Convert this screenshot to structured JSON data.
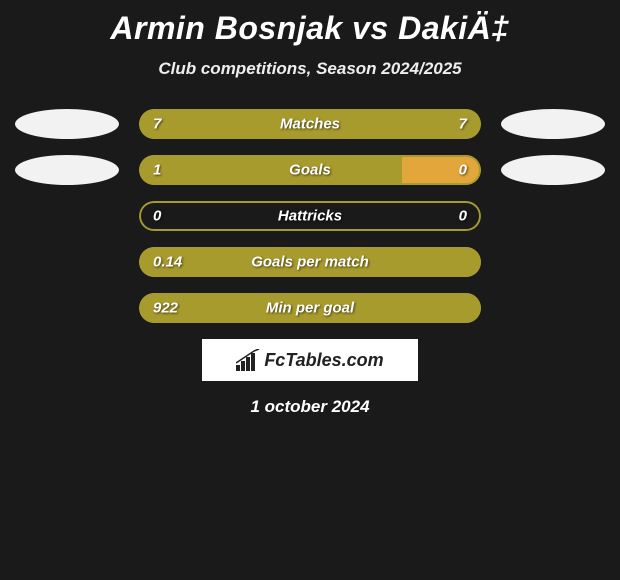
{
  "title": "Armin Bosnjak vs DakiÄ‡",
  "subtitle": "Club competitions, Season 2024/2025",
  "date": "1 october 2024",
  "brand": "FcTables.com",
  "colors": {
    "bar_fill": "#a89b2e",
    "bar_right_fill": "#e2a63a",
    "bar_border": "#a89b2e",
    "background": "#1a1a1a",
    "ellipse": "#f2f2f2",
    "brand_bg": "#ffffff"
  },
  "rows": [
    {
      "metric": "Matches",
      "left_value": "7",
      "right_value": "7",
      "left_pct": 50,
      "right_pct": 50,
      "left_fill": "#a89b2e",
      "right_fill": "#a89b2e",
      "show_left_ellipse": true,
      "show_right_ellipse": true
    },
    {
      "metric": "Goals",
      "left_value": "1",
      "right_value": "0",
      "left_pct": 77,
      "right_pct": 23,
      "left_fill": "#a89b2e",
      "right_fill": "#e2a63a",
      "show_left_ellipse": true,
      "show_right_ellipse": true
    },
    {
      "metric": "Hattricks",
      "left_value": "0",
      "right_value": "0",
      "left_pct": 0,
      "right_pct": 0,
      "left_fill": "#a89b2e",
      "right_fill": "#a89b2e",
      "show_left_ellipse": false,
      "show_right_ellipse": false
    },
    {
      "metric": "Goals per match",
      "left_value": "0.14",
      "right_value": "",
      "left_pct": 100,
      "right_pct": 0,
      "left_fill": "#a89b2e",
      "right_fill": "#a89b2e",
      "show_left_ellipse": false,
      "show_right_ellipse": false
    },
    {
      "metric": "Min per goal",
      "left_value": "922",
      "right_value": "",
      "left_pct": 100,
      "right_pct": 0,
      "left_fill": "#a89b2e",
      "right_fill": "#a89b2e",
      "show_left_ellipse": false,
      "show_right_ellipse": false
    }
  ]
}
